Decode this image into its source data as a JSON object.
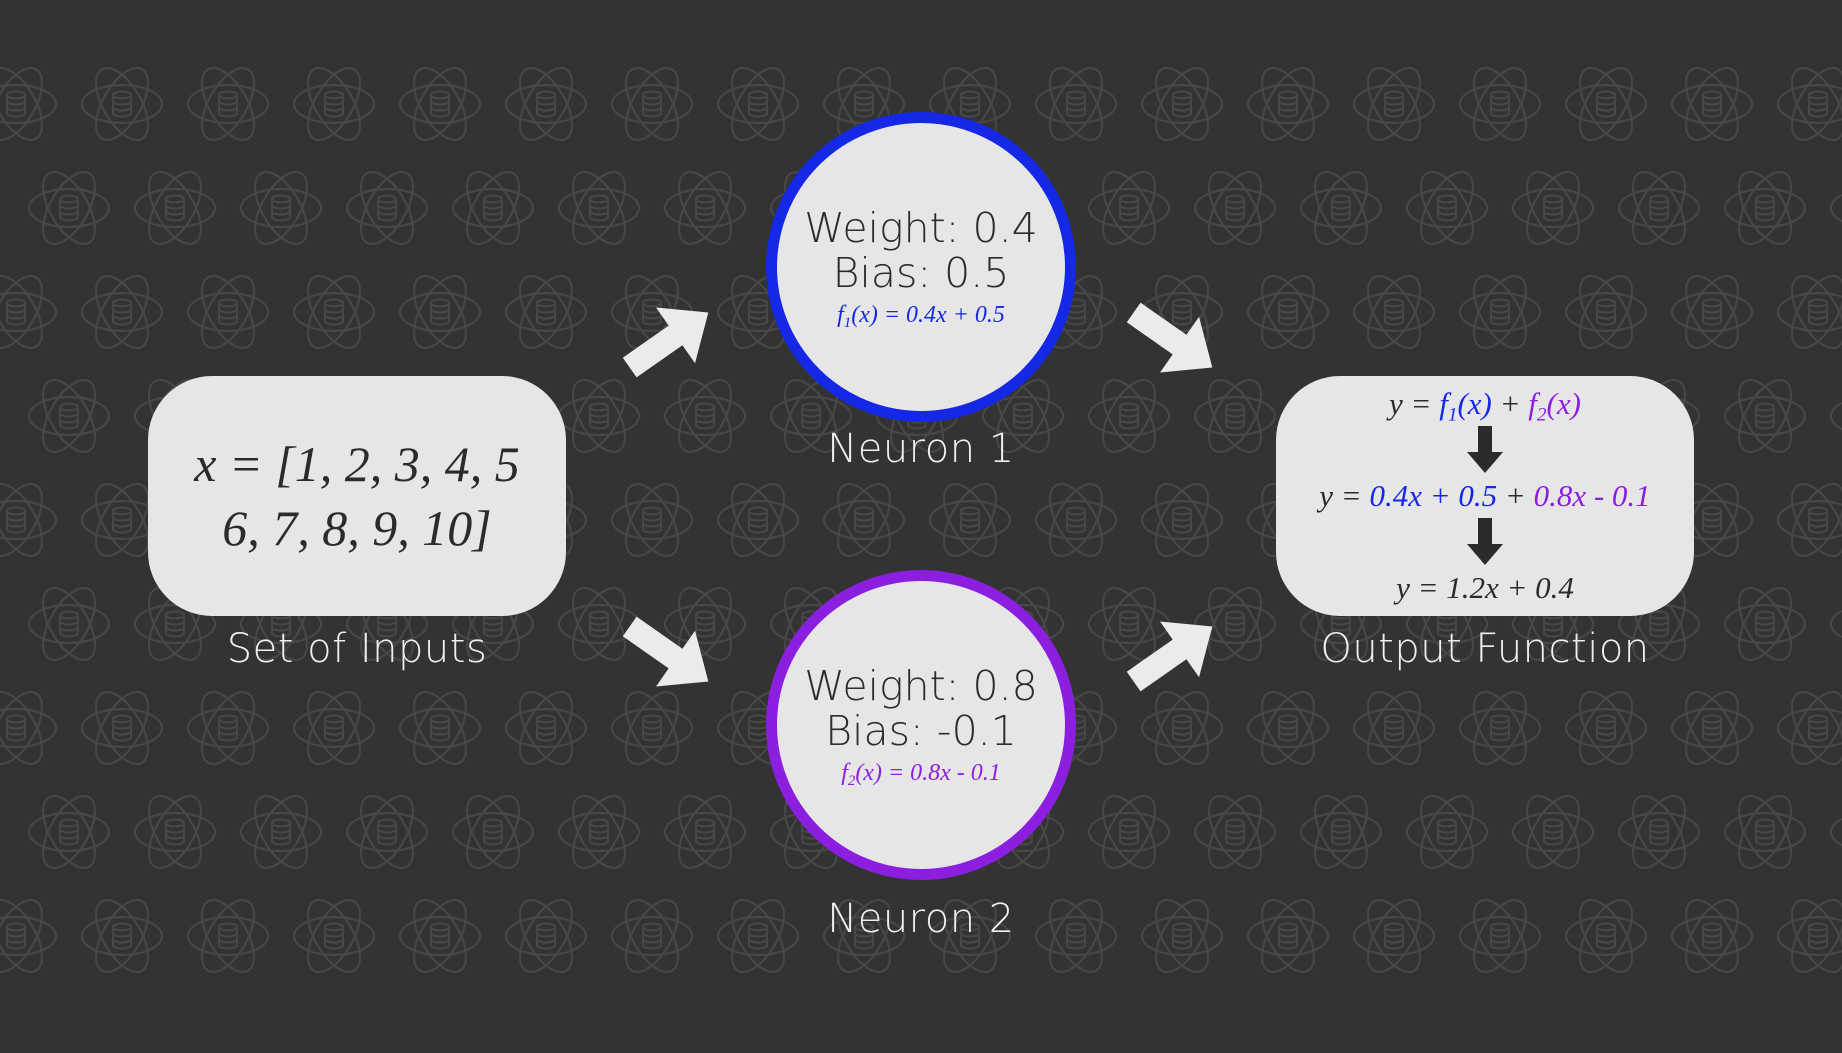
{
  "inputs": {
    "label": "Set of Inputs",
    "line1": "x = [1, 2, 3, 4, 5",
    "line2": "6, 7, 8, 9, 10]"
  },
  "neuron1": {
    "label": "Neuron 1",
    "weight": "Weight: 0.4",
    "bias": "Bias: 0.5",
    "fn_name": "f",
    "fn_sub": "1",
    "fn_body": "(x) = 0.4x + 0.5",
    "color": "#1428e6"
  },
  "neuron2": {
    "label": "Neuron 2",
    "weight": "Weight: 0.8",
    "bias": "Bias: -0.1",
    "fn_name": "f",
    "fn_sub": "2",
    "fn_body": "(x) = 0.8x - 0.1",
    "color": "#8c1ee0"
  },
  "output": {
    "label": "Output Function",
    "line1_prefix": "y = ",
    "line1_f1_name": "f",
    "line1_f1_sub": "1",
    "line1_f1_body": "(x)",
    "line1_plus": " + ",
    "line1_f2_name": "f",
    "line1_f2_sub": "2",
    "line1_f2_body": "(x)",
    "line2_prefix": "y = ",
    "line2_n1": "0.4x + 0.5",
    "line2_plus": " + ",
    "line2_n2": "0.8x - 0.1",
    "line3": "y = 1.2x + 0.4"
  },
  "icons": {
    "arrow": "arrow-icon",
    "down_arrow": "down-arrow-icon",
    "background": "atom-database-icon"
  }
}
